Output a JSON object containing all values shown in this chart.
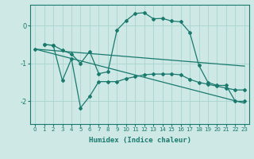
{
  "xlabel": "Humidex (Indice chaleur)",
  "bg_color": "#cde8e5",
  "line_color": "#1a7a6e",
  "grid_color": "#a8d4d0",
  "xlim": [
    -0.5,
    23.5
  ],
  "ylim": [
    -2.6,
    0.55
  ],
  "yticks": [
    0,
    -1,
    -2
  ],
  "xticks": [
    0,
    1,
    2,
    3,
    4,
    5,
    6,
    7,
    8,
    9,
    10,
    11,
    12,
    13,
    14,
    15,
    16,
    17,
    18,
    19,
    20,
    21,
    22,
    23
  ],
  "line1_x": [
    0,
    1,
    2,
    3,
    4,
    5,
    6,
    7,
    8,
    9,
    10,
    11,
    12,
    13,
    14,
    15,
    16,
    17,
    18,
    19,
    20,
    21,
    22,
    23
  ],
  "line1_y": [
    -0.62,
    -0.5,
    -0.52,
    -0.65,
    -0.75,
    -1.0,
    -0.68,
    -1.27,
    -1.22,
    -0.12,
    0.13,
    0.32,
    0.34,
    0.18,
    0.19,
    0.12,
    0.1,
    -0.18,
    -1.05,
    -1.5,
    -1.58,
    -1.58,
    -2.0,
    -2.0
  ],
  "line2_x": [
    0,
    1,
    2,
    3,
    4,
    5,
    6,
    7,
    8,
    9,
    10,
    11,
    12,
    13,
    14,
    15,
    16,
    17,
    18,
    19,
    20,
    21,
    22,
    23
  ],
  "line2_y": [
    -0.62,
    -0.5,
    -0.52,
    -1.45,
    -0.88,
    -2.17,
    -1.87,
    -1.48,
    -1.48,
    -1.48,
    -1.4,
    -1.35,
    -1.3,
    -1.28,
    -1.28,
    -1.28,
    -1.3,
    -1.42,
    -1.5,
    -1.55,
    -1.6,
    -1.65,
    -1.7,
    -1.7
  ],
  "line3_x": [
    0,
    23
  ],
  "line3_y": [
    -0.62,
    -1.07
  ],
  "line4_x": [
    0,
    23
  ],
  "line4_y": [
    -0.62,
    -2.05
  ]
}
